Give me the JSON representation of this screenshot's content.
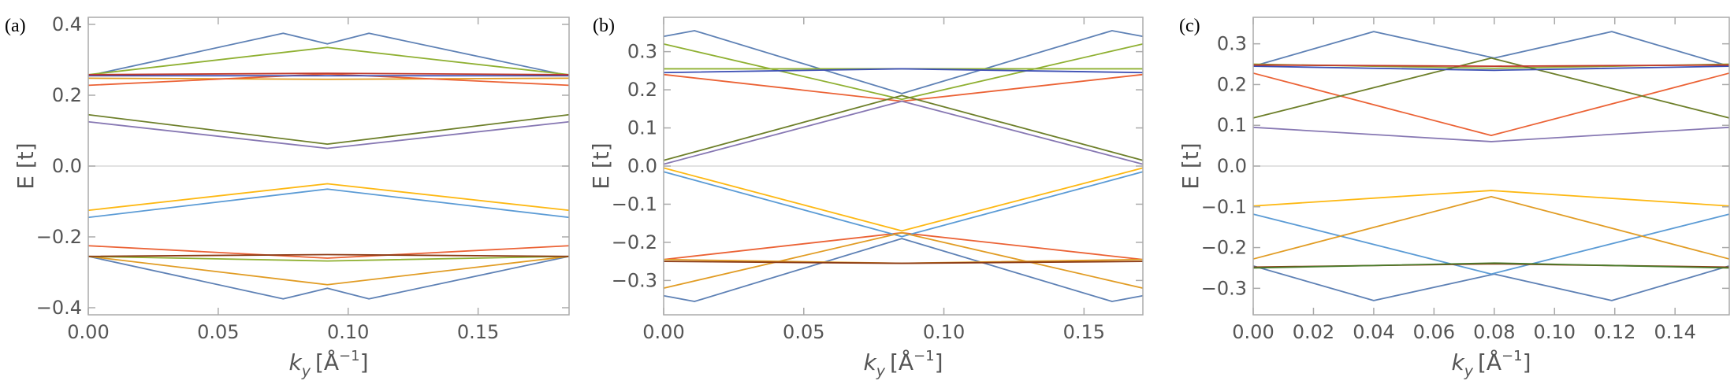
{
  "figure": {
    "panels": [
      "(a)",
      "(b)",
      "(c)"
    ]
  },
  "chart_data": [
    {
      "panel_label": "(a)",
      "type": "line",
      "ylabel": "E [t]",
      "xlabel": "ky [Å−1]",
      "xlabel_parts": {
        "var": "k",
        "sub": "y",
        "unit_open": "[Å",
        "sup": "−1",
        "unit_close": "]"
      },
      "xlim": [
        0,
        0.185
      ],
      "ylim": [
        -0.42,
        0.42
      ],
      "xticks": [
        0,
        0.05,
        0.1,
        0.15
      ],
      "xtick_labels": [
        "0.00",
        "0.05",
        "0.10",
        "0.15"
      ],
      "yticks": [
        -0.4,
        -0.2,
        0.0,
        0.2,
        0.4
      ],
      "ytick_labels": [
        "−0.4",
        "−0.2",
        "0.0",
        "0.2",
        "0.4"
      ],
      "zero_line": true,
      "series": [
        {
          "color": "#5E81B5",
          "points": [
            [
              0,
              0.255
            ],
            [
              0.075,
              0.375
            ],
            [
              0.092,
              0.345
            ],
            [
              0.108,
              0.375
            ],
            [
              0.185,
              0.255
            ]
          ]
        },
        {
          "color": "#5E81B5",
          "points": [
            [
              0,
              -0.255
            ],
            [
              0.075,
              -0.375
            ],
            [
              0.092,
              -0.345
            ],
            [
              0.108,
              -0.375
            ],
            [
              0.185,
              -0.255
            ]
          ]
        },
        {
          "color": "#E19C24",
          "points": [
            [
              0,
              0.248
            ],
            [
              0.092,
              0.245
            ],
            [
              0.185,
              0.248
            ]
          ]
        },
        {
          "color": "#E19C24",
          "points": [
            [
              0,
              -0.255
            ],
            [
              0.092,
              -0.335
            ],
            [
              0.185,
              -0.255
            ]
          ]
        },
        {
          "color": "#FDB813",
          "points": [
            [
              0,
              -0.125
            ],
            [
              0.092,
              -0.05
            ],
            [
              0.185,
              -0.125
            ]
          ]
        },
        {
          "color": "#8FB032",
          "points": [
            [
              0,
              0.258
            ],
            [
              0.092,
              0.335
            ],
            [
              0.185,
              0.258
            ]
          ]
        },
        {
          "color": "#8FB032",
          "points": [
            [
              0,
              -0.255
            ],
            [
              0.092,
              -0.268
            ],
            [
              0.185,
              -0.255
            ]
          ]
        },
        {
          "color": "#EB6235",
          "points": [
            [
              0,
              0.228
            ],
            [
              0.092,
              0.26
            ],
            [
              0.185,
              0.228
            ]
          ]
        },
        {
          "color": "#EB6235",
          "points": [
            [
              0,
              -0.225
            ],
            [
              0.092,
              -0.26
            ],
            [
              0.185,
              -0.225
            ]
          ]
        },
        {
          "color": "#8778B3",
          "points": [
            [
              0,
              0.125
            ],
            [
              0.092,
              0.05
            ],
            [
              0.185,
              0.125
            ]
          ]
        },
        {
          "color": "#6D7F2A",
          "points": [
            [
              0,
              0.145
            ],
            [
              0.092,
              0.062
            ],
            [
              0.185,
              0.145
            ]
          ]
        },
        {
          "color": "#3D4FB4",
          "points": [
            [
              0,
              0.255
            ],
            [
              0.092,
              0.255
            ],
            [
              0.185,
              0.255
            ]
          ]
        },
        {
          "color": "#5B9BD5",
          "points": [
            [
              0,
              -0.145
            ],
            [
              0.092,
              -0.065
            ],
            [
              0.185,
              -0.145
            ]
          ]
        },
        {
          "color": "#C0392B",
          "points": [
            [
              0,
              0.258
            ],
            [
              0.092,
              0.262
            ],
            [
              0.185,
              0.258
            ]
          ]
        },
        {
          "color": "#8B3A14",
          "points": [
            [
              0,
              -0.255
            ],
            [
              0.092,
              -0.25
            ],
            [
              0.185,
              -0.255
            ]
          ]
        }
      ]
    },
    {
      "panel_label": "(b)",
      "type": "line",
      "ylabel": "E [t]",
      "xlabel": "ky [Å−1]",
      "xlabel_parts": {
        "var": "k",
        "sub": "y",
        "unit_open": "[Å",
        "sup": "−1",
        "unit_close": "]"
      },
      "xlim": [
        0,
        0.171
      ],
      "ylim": [
        -0.39,
        0.39
      ],
      "xticks": [
        0,
        0.05,
        0.1,
        0.15
      ],
      "xtick_labels": [
        "0.00",
        "0.05",
        "0.10",
        "0.15"
      ],
      "yticks": [
        -0.3,
        -0.2,
        -0.1,
        0.0,
        0.1,
        0.2,
        0.3
      ],
      "ytick_labels": [
        "−0.3",
        "−0.2",
        "−0.1",
        "0.0",
        "0.1",
        "0.2",
        "0.3"
      ],
      "zero_line": true,
      "series": [
        {
          "color": "#5E81B5",
          "points": [
            [
              0,
              0.34
            ],
            [
              0.011,
              0.355
            ],
            [
              0.085,
              0.19
            ],
            [
              0.16,
              0.355
            ],
            [
              0.171,
              0.34
            ]
          ]
        },
        {
          "color": "#5E81B5",
          "points": [
            [
              0,
              -0.34
            ],
            [
              0.011,
              -0.355
            ],
            [
              0.085,
              -0.19
            ],
            [
              0.16,
              -0.355
            ],
            [
              0.171,
              -0.34
            ]
          ]
        },
        {
          "color": "#8FB032",
          "points": [
            [
              0,
              0.32
            ],
            [
              0.085,
              0.175
            ],
            [
              0.171,
              0.32
            ]
          ]
        },
        {
          "color": "#8FB032",
          "points": [
            [
              0,
              0.255
            ],
            [
              0.085,
              0.255
            ],
            [
              0.171,
              0.255
            ]
          ]
        },
        {
          "color": "#EB6235",
          "points": [
            [
              0,
              0.24
            ],
            [
              0.085,
              0.17
            ],
            [
              0.171,
              0.24
            ]
          ]
        },
        {
          "color": "#EB6235",
          "points": [
            [
              0,
              -0.245
            ],
            [
              0.085,
              -0.175
            ],
            [
              0.171,
              -0.245
            ]
          ]
        },
        {
          "color": "#3D4FB4",
          "points": [
            [
              0,
              0.245
            ],
            [
              0.085,
              0.255
            ],
            [
              0.171,
              0.245
            ]
          ]
        },
        {
          "color": "#6D7F2A",
          "points": [
            [
              0,
              0.015
            ],
            [
              0.085,
              0.185
            ],
            [
              0.171,
              0.015
            ]
          ]
        },
        {
          "color": "#8778B3",
          "points": [
            [
              0,
              0.005
            ],
            [
              0.085,
              0.17
            ],
            [
              0.171,
              0.005
            ]
          ]
        },
        {
          "color": "#FDB813",
          "points": [
            [
              0,
              -0.005
            ],
            [
              0.085,
              -0.17
            ],
            [
              0.171,
              -0.005
            ]
          ]
        },
        {
          "color": "#5B9BD5",
          "points": [
            [
              0,
              -0.015
            ],
            [
              0.085,
              -0.185
            ],
            [
              0.171,
              -0.015
            ]
          ]
        },
        {
          "color": "#E19C24",
          "points": [
            [
              0,
              -0.32
            ],
            [
              0.085,
              -0.175
            ],
            [
              0.171,
              -0.32
            ]
          ]
        },
        {
          "color": "#E19C24",
          "points": [
            [
              0,
              -0.245
            ],
            [
              0.085,
              -0.255
            ],
            [
              0.171,
              -0.245
            ]
          ]
        },
        {
          "color": "#8B3A14",
          "points": [
            [
              0,
              -0.25
            ],
            [
              0.085,
              -0.255
            ],
            [
              0.171,
              -0.25
            ]
          ]
        }
      ]
    },
    {
      "panel_label": "(c)",
      "type": "line",
      "ylabel": "E [t]",
      "xlabel": "ky [Å−1]",
      "xlabel_parts": {
        "var": "k",
        "sub": "y",
        "unit_open": "[Å",
        "sup": "−1",
        "unit_close": "]"
      },
      "xlim": [
        0,
        0.158
      ],
      "ylim": [
        -0.365,
        0.365
      ],
      "xticks": [
        0,
        0.02,
        0.04,
        0.06,
        0.08,
        0.1,
        0.12,
        0.14
      ],
      "xtick_labels": [
        "0.00",
        "0.02",
        "0.04",
        "0.06",
        "0.08",
        "0.10",
        "0.12",
        "0.14"
      ],
      "yticks": [
        -0.3,
        -0.2,
        -0.1,
        0.0,
        0.1,
        0.2,
        0.3
      ],
      "ytick_labels": [
        "−0.3",
        "−0.2",
        "−0.1",
        "0.0",
        "0.1",
        "0.2",
        "0.3"
      ],
      "zero_line": true,
      "series": [
        {
          "color": "#5E81B5",
          "points": [
            [
              0,
              0.245
            ],
            [
              0.04,
              0.33
            ],
            [
              0.08,
              0.265
            ],
            [
              0.119,
              0.33
            ],
            [
              0.158,
              0.245
            ]
          ]
        },
        {
          "color": "#5E81B5",
          "points": [
            [
              0,
              -0.245
            ],
            [
              0.04,
              -0.33
            ],
            [
              0.08,
              -0.265
            ],
            [
              0.119,
              -0.33
            ],
            [
              0.158,
              -0.245
            ]
          ]
        },
        {
          "color": "#8FB032",
          "points": [
            [
              0,
              0.25
            ],
            [
              0.08,
              0.24
            ],
            [
              0.158,
              0.25
            ]
          ]
        },
        {
          "color": "#EB6235",
          "points": [
            [
              0,
              0.228
            ],
            [
              0.079,
              0.075
            ],
            [
              0.158,
              0.228
            ]
          ]
        },
        {
          "color": "#6D7F2A",
          "points": [
            [
              0,
              0.118
            ],
            [
              0.079,
              0.265
            ],
            [
              0.158,
              0.118
            ]
          ]
        },
        {
          "color": "#8778B3",
          "points": [
            [
              0,
              0.095
            ],
            [
              0.079,
              0.06
            ],
            [
              0.158,
              0.095
            ]
          ]
        },
        {
          "color": "#FDB813",
          "points": [
            [
              0,
              -0.098
            ],
            [
              0.079,
              -0.06
            ],
            [
              0.158,
              -0.098
            ]
          ]
        },
        {
          "color": "#5B9BD5",
          "points": [
            [
              0,
              -0.118
            ],
            [
              0.079,
              -0.265
            ],
            [
              0.158,
              -0.118
            ]
          ]
        },
        {
          "color": "#E19C24",
          "points": [
            [
              0,
              -0.228
            ],
            [
              0.079,
              -0.075
            ],
            [
              0.158,
              -0.228
            ]
          ]
        },
        {
          "color": "#3D4FB4",
          "points": [
            [
              0,
              0.245
            ],
            [
              0.08,
              0.235
            ],
            [
              0.158,
              0.245
            ]
          ]
        },
        {
          "color": "#C0392B",
          "points": [
            [
              0,
              0.248
            ],
            [
              0.08,
              0.245
            ],
            [
              0.158,
              0.248
            ]
          ]
        },
        {
          "color": "#8B3A14",
          "points": [
            [
              0,
              -0.248
            ],
            [
              0.08,
              -0.24
            ],
            [
              0.158,
              -0.248
            ]
          ]
        },
        {
          "color": "#4A7A2A",
          "points": [
            [
              0,
              -0.25
            ],
            [
              0.08,
              -0.238
            ],
            [
              0.158,
              -0.25
            ]
          ]
        }
      ]
    }
  ]
}
